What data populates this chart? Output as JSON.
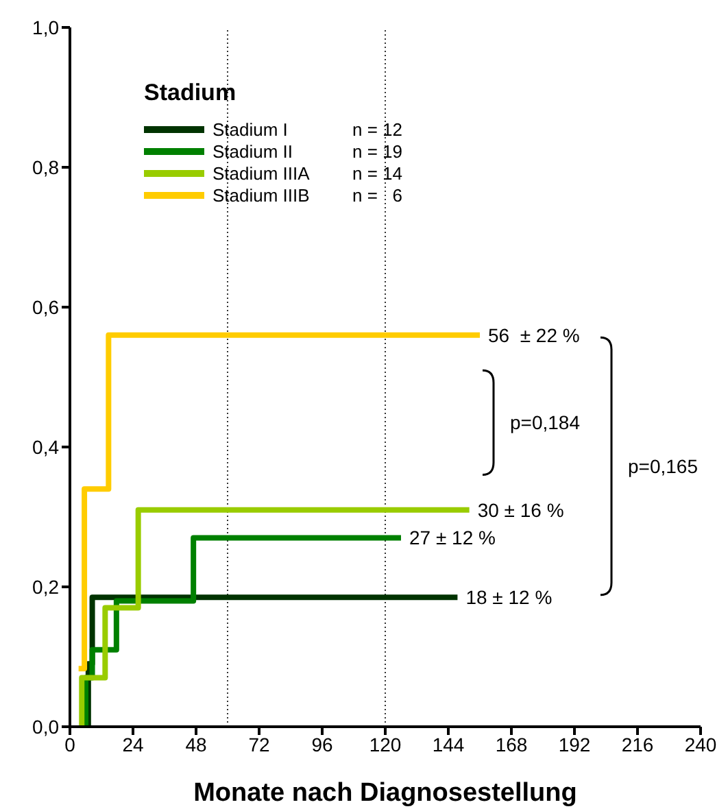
{
  "chart_data": {
    "type": "step",
    "xlabel": "Monate nach Diagnosestellung",
    "legend_title": "Stadium",
    "legend": "top left",
    "line_style": "solid",
    "marker": "none",
    "xlim": [
      0,
      240
    ],
    "xticks": [
      0,
      24,
      48,
      72,
      96,
      120,
      144,
      168,
      192,
      216,
      240
    ],
    "ylim": [
      0,
      1
    ],
    "yticks": [
      {
        "value": 0,
        "label": "0,0"
      },
      {
        "value": 0.2,
        "label": "0,2"
      },
      {
        "value": 0.4,
        "label": "0,4"
      },
      {
        "value": 0.6,
        "label": "0,6"
      },
      {
        "value": 0.8,
        "label": "0,8"
      },
      {
        "value": 1,
        "label": "1,0"
      }
    ],
    "series": [
      {
        "name": "Stadium I",
        "color": "#003300",
        "x": [
          6,
          7,
          8.5,
          147.5
        ],
        "values": [
          0,
          0.09,
          0.185,
          0.185
        ]
      },
      {
        "name": "Stadium II",
        "color": "#008000",
        "x": [
          5,
          6,
          8.5,
          17.7,
          47,
          126
        ],
        "values": [
          0,
          0.07,
          0.11,
          0.18,
          0.27,
          0.27
        ]
      },
      {
        "name": "Stadium IIIA",
        "color": "#99cc00",
        "x": [
          4,
          4.5,
          13.4,
          26,
          152
        ],
        "values": [
          0,
          0.07,
          0.17,
          0.31,
          0.31
        ]
      },
      {
        "name": "Stadium IIIB",
        "color": "#ffcc00",
        "x": [
          3.3,
          5.5,
          14.7,
          156
        ],
        "values": [
          0.083,
          0.34,
          0.56,
          0.56
        ]
      }
    ],
    "ref_lines": [
      {
        "axis": "x",
        "value": 60,
        "color": "#333333",
        "line_style": "dotted"
      },
      {
        "axis": "x",
        "value": 120,
        "color": "#333333",
        "line_style": "dotted"
      }
    ],
    "annotations": [
      "n = 12",
      "n = 19",
      "n = 14",
      "n =   6",
      {
        "text": "56  ± 22 %",
        "x": 156,
        "y": 0.56
      },
      {
        "text": "30 ± 16 %",
        "x": 152,
        "y": 0.31
      },
      {
        "text": "27 ± 12 %",
        "x": 126,
        "y": 0.27
      },
      {
        "text": "18 ± 12 %",
        "x": 147.5,
        "y": 0.185
      },
      "p=0,184",
      "p=0,165"
    ]
  }
}
